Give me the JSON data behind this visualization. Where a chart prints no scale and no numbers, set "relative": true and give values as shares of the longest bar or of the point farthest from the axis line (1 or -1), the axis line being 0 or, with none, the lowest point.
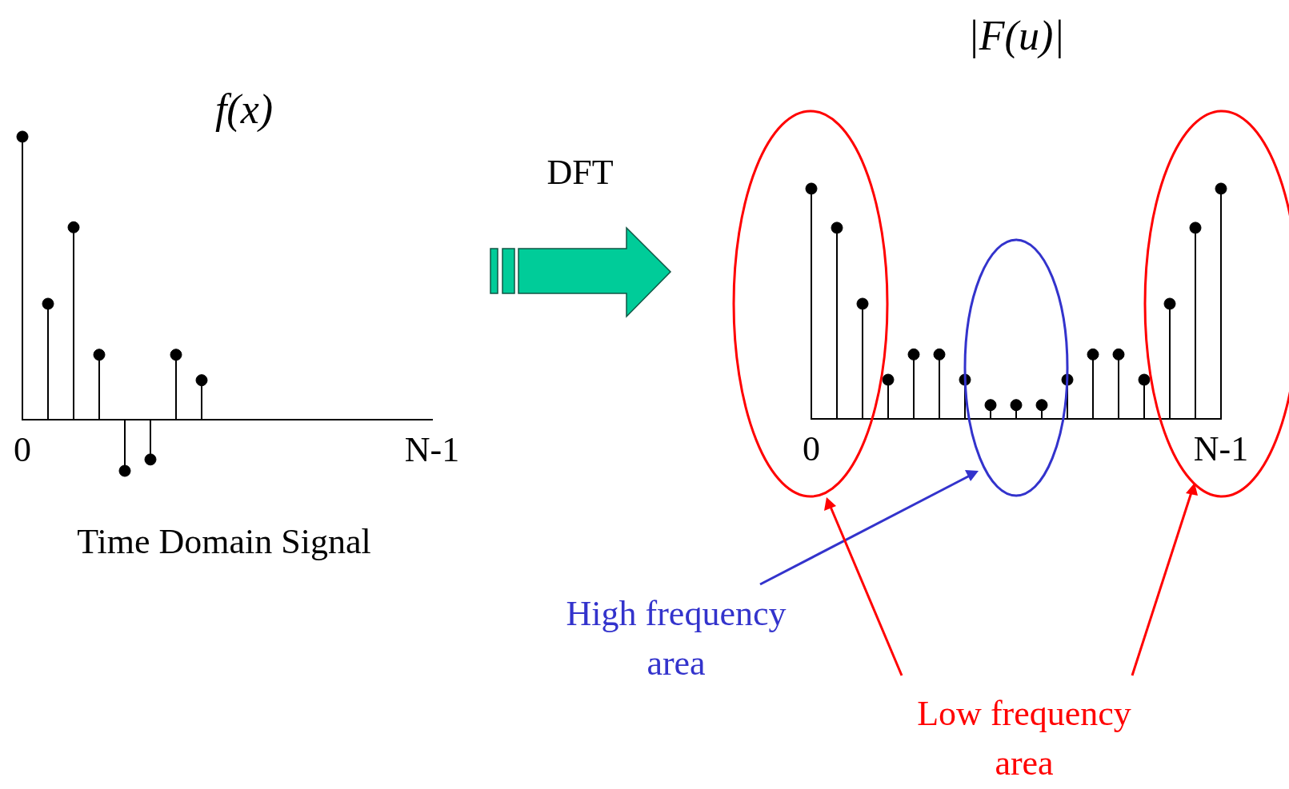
{
  "chart_data": [
    {
      "type": "lollipop",
      "title": "f(x)",
      "xlabel": "Time Domain Signal",
      "relative": true,
      "tick_labels": "x",
      "marker": "circle",
      "categories": [
        "0",
        null,
        null,
        null,
        null,
        null,
        null,
        null,
        null,
        null,
        null,
        null,
        null,
        null,
        null,
        null,
        "N-1"
      ],
      "series": [
        {
          "color": "#000000",
          "values": [
            1,
            0.41,
            0.68,
            0.23,
            -0.18,
            -0.14,
            0.23,
            0.14,
            null,
            null,
            null,
            null,
            null,
            null,
            null,
            null,
            null
          ]
        }
      ]
    },
    {
      "type": "lollipop",
      "title": "|F(u)|",
      "relative": true,
      "tick_labels": "x",
      "marker": "circle",
      "annotations": [
        "DFT",
        "High frequency area",
        "Low frequency area"
      ],
      "categories": [
        "0",
        null,
        null,
        null,
        null,
        null,
        null,
        null,
        null,
        null,
        null,
        null,
        null,
        null,
        null,
        null,
        "N-1"
      ],
      "series": [
        {
          "color": "#000000",
          "values": [
            1,
            0.83,
            0.5,
            0.17,
            0.28,
            0.28,
            0.17,
            0.06,
            0.06,
            0.06,
            0.17,
            0.28,
            0.28,
            0.17,
            0.5,
            0.83,
            1
          ]
        }
      ]
    }
  ]
}
